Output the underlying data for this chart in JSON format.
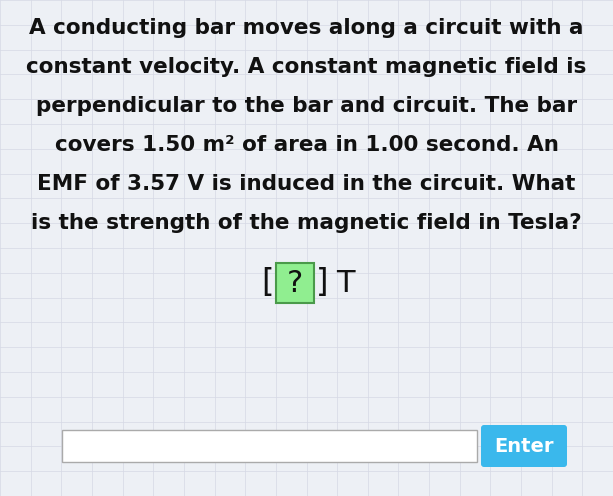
{
  "background_color": "#edf0f5",
  "grid_color": "#d5d9e5",
  "main_text_lines": [
    "A conducting bar moves along a circuit with a",
    "constant velocity. A constant magnetic field is",
    "perpendicular to the bar and circuit. The bar",
    "covers 1.50 m² of area in 1.00 second. An",
    "EMF of 3.57 V is induced in the circuit. What",
    "is the strength of the magnetic field in Tesla?"
  ],
  "question_box_text": "?",
  "question_box_bg": "#90EE90",
  "question_box_border": "#4a9a4a",
  "question_unit": "T",
  "input_box_color": "#ffffff",
  "input_box_border": "#aaaaaa",
  "enter_button_text": "Enter",
  "enter_button_color": "#3ab8ec",
  "enter_button_text_color": "#ffffff",
  "text_color": "#111111",
  "main_fontsize": 15.5,
  "question_fontsize": 22,
  "button_fontsize": 14,
  "fig_width": 6.13,
  "fig_height": 4.96,
  "dpi": 100
}
